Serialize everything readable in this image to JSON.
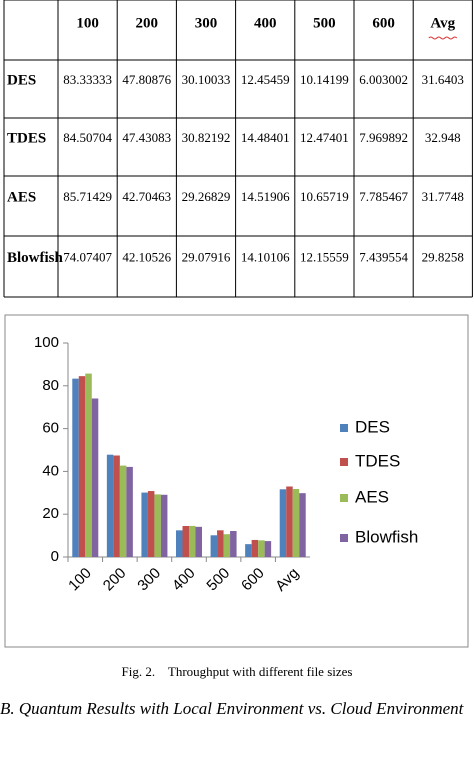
{
  "table": {
    "columns": [
      "100",
      "200",
      "300",
      "400",
      "500",
      "600",
      "Avg"
    ],
    "rows": [
      {
        "label": "DES",
        "cells": [
          "83.33333",
          "47.80876",
          "30.10033",
          "12.45459",
          "10.14199",
          "6.003002",
          "31.6403"
        ]
      },
      {
        "label": "TDES",
        "cells": [
          "84.50704",
          "47.43083",
          "30.82192",
          "14.48401",
          "12.47401",
          "7.969892",
          "32.948"
        ]
      },
      {
        "label": "AES",
        "cells": [
          "85.71429",
          "42.70463",
          "29.26829",
          "14.51906",
          "10.65719",
          "7.785467",
          "31.7748"
        ]
      },
      {
        "label": "Blowfish",
        "cells": [
          "74.07407",
          "42.10526",
          "29.07916",
          "14.10106",
          "12.15559",
          "7.439554",
          "29.8258"
        ]
      }
    ]
  },
  "chart_data": {
    "type": "bar",
    "categories": [
      "100",
      "200",
      "300",
      "400",
      "500",
      "600",
      "Avg"
    ],
    "series": [
      {
        "name": "DES",
        "color": "#4f81bd",
        "values": [
          83.33333,
          47.80876,
          30.10033,
          12.45459,
          10.14199,
          6.003002,
          31.6403
        ]
      },
      {
        "name": "TDES",
        "color": "#c0504d",
        "values": [
          84.50704,
          47.43083,
          30.82192,
          14.48401,
          12.47401,
          7.969892,
          32.948
        ]
      },
      {
        "name": "AES",
        "color": "#9bbb59",
        "values": [
          85.71429,
          42.70463,
          29.26829,
          14.51906,
          10.65719,
          7.785467,
          31.7748
        ]
      },
      {
        "name": "Blowfish",
        "color": "#8064a2",
        "values": [
          74.07407,
          42.10526,
          29.07916,
          14.10106,
          12.15559,
          7.439554,
          29.8258
        ]
      }
    ],
    "ylim": [
      0,
      100
    ],
    "yticks": [
      0,
      20,
      40,
      60,
      80,
      100
    ],
    "grid": false,
    "legend": "right"
  },
  "caption": "Fig. 2.    Throughput with different file sizes",
  "section_heading": "B. Quantum Results with Local Environment vs. Cloud Environment"
}
